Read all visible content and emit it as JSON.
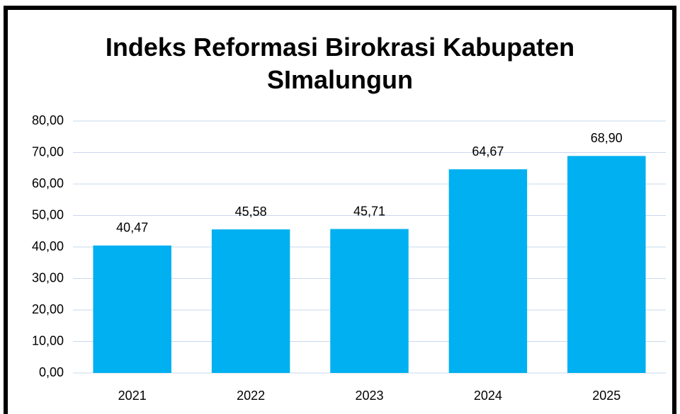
{
  "chart_data": {
    "type": "bar",
    "title": "Indeks Reformasi Birokrasi Kabupaten SImalungun",
    "categories": [
      "2021",
      "2022",
      "2023",
      "2024",
      "2025"
    ],
    "values": [
      40.47,
      45.58,
      45.71,
      64.67,
      68.9
    ],
    "value_labels": [
      "40,47",
      "45,58",
      "45,71",
      "64,67",
      "68,90"
    ],
    "color": "#00b0f0",
    "ylim": [
      0,
      80
    ],
    "yticks": [
      {
        "value": 0,
        "label": "0,00"
      },
      {
        "value": 10,
        "label": "10,00"
      },
      {
        "value": 20,
        "label": "20,00"
      },
      {
        "value": 30,
        "label": "30,00"
      },
      {
        "value": 40,
        "label": "40,00"
      },
      {
        "value": 50,
        "label": "50,00"
      },
      {
        "value": 60,
        "label": "60,00"
      },
      {
        "value": 70,
        "label": "70,00"
      },
      {
        "value": 80,
        "label": "80,00"
      }
    ],
    "grid": true
  }
}
